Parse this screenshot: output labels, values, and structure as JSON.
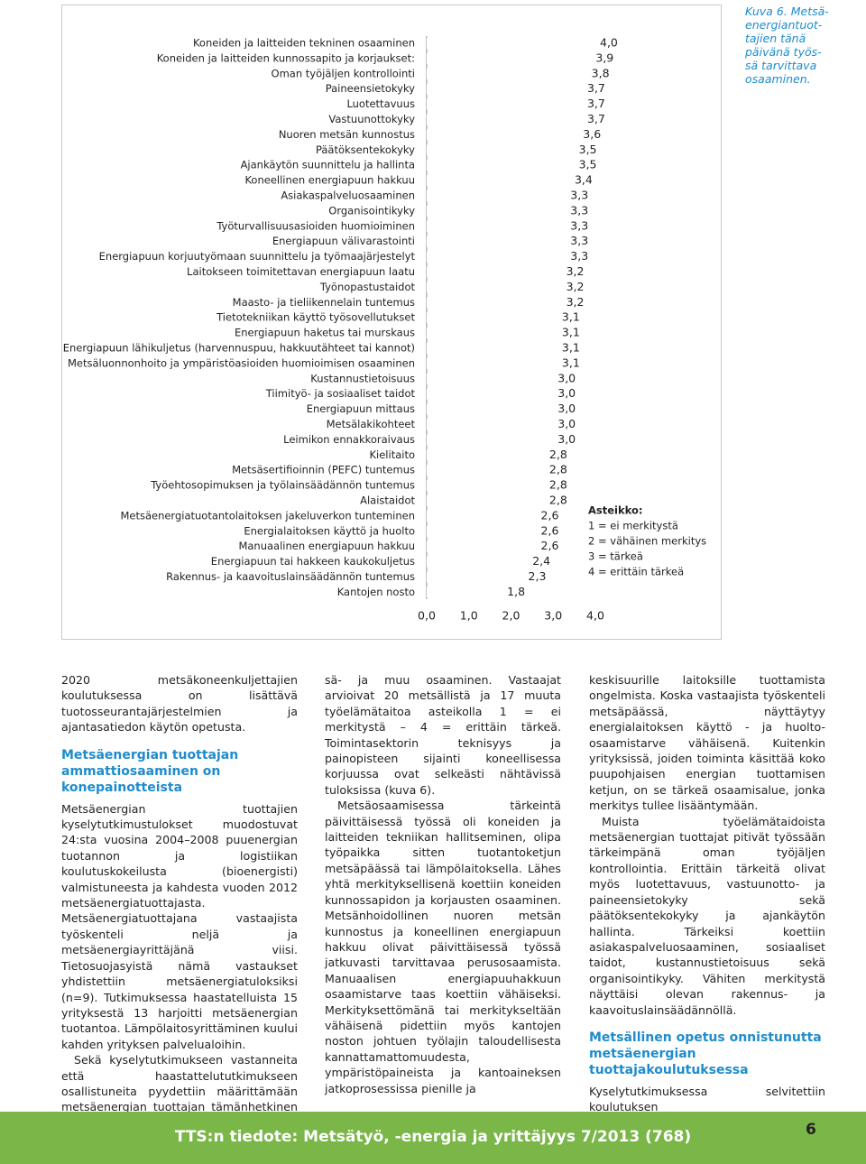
{
  "chart_data": {
    "type": "hbar",
    "categories": [
      "Koneiden ja laitteiden tekninen osaaminen",
      "Koneiden ja laitteiden kunnossapito ja korjaukset:",
      "Oman työjäljen kontrollointi",
      "Paineensietokyky",
      "Luotettavuus",
      "Vastuunottokyky",
      "Nuoren metsän kunnostus",
      "Päätöksentekokyky",
      "Ajankäytön suunnittelu ja hallinta",
      "Koneellinen energiapuun hakkuu",
      "Asiakaspalveluosaaminen",
      "Organisointikyky",
      "Työturvallisuusasioiden huomioiminen",
      "Energiapuun välivarastointi",
      "Energiapuun korjuutyömaan suunnittelu ja työmaajärjestelyt",
      "Laitokseen toimitettavan energiapuun laatu",
      "Työnopastustaidot",
      "Maasto- ja tieliikennelain tuntemus",
      "Tietotekniikan käyttö työsovellutukset",
      "Energiapuun haketus tai murskaus",
      "Energiapuun lähikuljetus (harvennuspuu, hakkuutähteet tai kannot)",
      "Metsäluonnonhoito ja ympäristöasioiden huomioimisen osaaminen",
      "Kustannustietoisuus",
      "Tiimityö- ja sosiaaliset taidot",
      "Energiapuun mittaus",
      "Metsälakikohteet",
      "Leimikon ennakkoraivaus",
      "Kielitaito",
      "Metsäsertifioinnin (PEFC) tuntemus",
      "Työehtosopimuksen  ja työlainsäädännön tuntemus",
      "Alaistaidot",
      "Metsäenergiatuotantolaitoksen jakeluverkon tunteminen",
      "Energialaitoksen käyttö ja huolto",
      "Manuaalinen energiapuun hakkuu",
      "Energiapuun tai hakkeen kaukokuljetus",
      "Rakennus- ja kaavoituslainsäädännön tuntemus",
      "Kantojen nosto"
    ],
    "values": [
      4.0,
      3.9,
      3.8,
      3.7,
      3.7,
      3.7,
      3.6,
      3.5,
      3.5,
      3.4,
      3.3,
      3.3,
      3.3,
      3.3,
      3.3,
      3.2,
      3.2,
      3.2,
      3.1,
      3.1,
      3.1,
      3.1,
      3.0,
      3.0,
      3.0,
      3.0,
      3.0,
      2.8,
      2.8,
      2.8,
      2.8,
      2.6,
      2.6,
      2.6,
      2.4,
      2.3,
      1.8
    ],
    "value_labels": [
      "4,0",
      "3,9",
      "3,8",
      "3,7",
      "3,7",
      "3,7",
      "3,6",
      "3,5",
      "3,5",
      "3,4",
      "3,3",
      "3,3",
      "3,3",
      "3,3",
      "3,3",
      "3,2",
      "3,2",
      "3,2",
      "3,1",
      "3,1",
      "3,1",
      "3,1",
      "3,0",
      "3,0",
      "3,0",
      "3,0",
      "3,0",
      "2,8",
      "2,8",
      "2,8",
      "2,8",
      "2,6",
      "2,6",
      "2,6",
      "2,4",
      "2,3",
      "1,8"
    ],
    "color": "#ffffff",
    "xlim": [
      0,
      4
    ],
    "xticks": [
      {
        "value": 0,
        "label": "0,0"
      },
      {
        "value": 1,
        "label": "1,0"
      },
      {
        "value": 2,
        "label": "2,0"
      },
      {
        "value": 3,
        "label": "3,0"
      },
      {
        "value": 4,
        "label": "4,0"
      }
    ],
    "annotations": [
      "Asteikko:",
      "1 = ei merkitystä",
      "2 = vähäinen merkitys",
      "3 = tärkeä",
      "4 = erittäin tärkeä"
    ],
    "caption": [
      "Kuva 6. Metsä-",
      "energiantuot-",
      "tajien tänä",
      "päivänä työs-",
      "sä tarvittava",
      "osaaminen."
    ]
  },
  "columns": [
    [
      {
        "type": "p",
        "text": "2020 metsäkoneenkuljettajien koulutuksessa on lisättävä tuotosseurantajärjestelmien ja ajantasatiedon käytön opetusta."
      },
      {
        "type": "h",
        "text": "Metsäenergian tuottajan ammattiosaaminen on konepainotteista"
      },
      {
        "type": "p",
        "text": "Metsäenergian tuottajien kyselytutkimustulokset muodostuvat 24:sta vuosina 2004–2008 puuenergian tuotannon ja logistiikan koulutuskokeilusta (bioenergisti) valmistuneesta ja kahdesta vuoden 2012 metsäenergiatuottajasta. Metsäenergiatuottajana vastaajista työskenteli neljä ja metsäenergiayrittäjänä viisi. Tietosuojasyistä nämä vastaukset yhdistettiin metsäenergiatuloksiksi (n=9). Tutkimuksessa haastatelluista 15 yrityksestä 13 harjoitti metsäenergian tuotantoa. Lämpölaitosyrittäminen kuului kahden yrityksen palvelualoihin."
      },
      {
        "type": "pi",
        "text": "Sekä kyselytutkimukseen vastanneita että haastattelututkimukseen osallistuneita pyydettiin määrittämään metsäenergian tuottajan tämänhetkinen työssä tarvittava met-"
      }
    ],
    [
      {
        "type": "p",
        "text": "sä- ja muu osaaminen. Vastaajat arvioivat 20 metsällistä ja 17 muuta työelämätaitoa asteikolla 1 = ei merkitystä – 4 = erittäin tärkeä. Toimintasektorin teknisyys ja painopisteen sijainti koneellisessa korjuussa ovat selkeästi nähtävissä tuloksissa (kuva 6)."
      },
      {
        "type": "pi",
        "text": "Metsäosaamisessa tärkeintä päivittäisessä työssä oli koneiden ja laitteiden tekniikan hallitseminen, olipa työpaikka sitten tuotantoketjun metsäpäässä tai lämpölaitoksella. Lähes yhtä merkityksellisenä koettiin koneiden kunnossapidon ja korjausten osaaminen. Metsänhoidollinen nuoren metsän kunnostus ja koneellinen energiapuun hakkuu olivat päivittäisessä työssä jatkuvasti tarvittavaa perusosaamista. Manuaalisen energiapuuhakkuun osaamistarve taas koettiin vähäiseksi. Merkityksettömänä tai merkitykseltään vähäisenä pidettiin myös kantojen noston johtuen työlajin taloudellisesta kannattamattomuudesta, ympäristöpaineista ja kantoaineksen jatkoprosessissa pienille ja"
      }
    ],
    [
      {
        "type": "p",
        "text": "keskisuurille laitoksille tuottamista ongelmista. Koska vastaajista työskenteli metsäpäässä, näyttäytyy energialaitoksen käyttö - ja huolto-osaamistarve vähäisenä. Kuitenkin yrityksissä, joiden toiminta käsittää koko puupohjaisen energian tuottamisen ketjun, on se tärkeä osaamisalue, jonka merkitys tullee lisääntymään."
      },
      {
        "type": "pi",
        "text": "Muista työelämätaidoista metsäenergian tuottajat pitivät työssään tärkeimpänä oman työjäljen kontrollointia. Erittäin tärkeitä olivat myös luotettavuus, vastuunotto- ja paineensietokyky sekä päätöksentekokyky ja ajankäytön hallinta. Tärkeiksi koettiin asiakaspalveluosaaminen, sosiaaliset taidot, kustannustietoisuus sekä organisointikyky. Vähiten merkitystä näyttäisi olevan rakennus- ja kaavoituslainsäädännöllä."
      },
      {
        "type": "h",
        "text": "Metsällinen opetus onnistunutta metsäenergian tuottajakoulutuksessa"
      },
      {
        "type": "p",
        "text": "Kyselytutkimuksessa selvitettiin koulutuksen"
      }
    ]
  ],
  "footer": {
    "title": "TTS:n tiedote: Metsätyö, -energia ja yrittäjyys 7/2013 (768)",
    "page": "6"
  }
}
